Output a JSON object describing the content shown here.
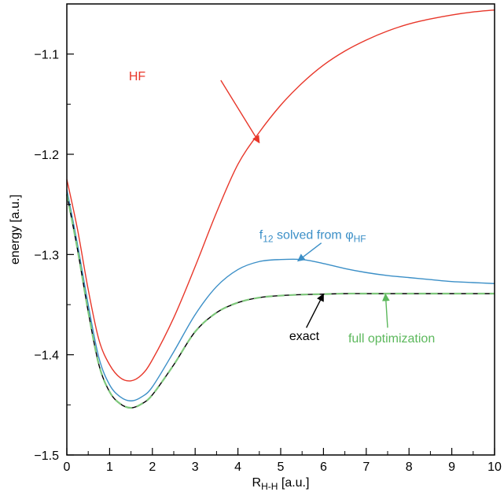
{
  "chart_data": {
    "type": "line",
    "title": "",
    "xlabel_main": "R",
    "xlabel_sub": "H-H",
    "xlabel_unit": " [a.u.]",
    "ylabel": "energy [a.u.]",
    "xlim": [
      0,
      10
    ],
    "ylim": [
      -1.5,
      -1.05
    ],
    "x_ticks": [
      0,
      1,
      2,
      3,
      4,
      5,
      6,
      7,
      8,
      9,
      10
    ],
    "x_tick_labels": [
      "0",
      "1",
      "2",
      "3",
      "4",
      "5",
      "6",
      "7",
      "8",
      "9",
      "10"
    ],
    "y_ticks": [
      -1.5,
      -1.4,
      -1.3,
      -1.2,
      -1.1
    ],
    "y_tick_labels": [
      "−1.5",
      "−1.4",
      "−1.3",
      "−1.2",
      "−1.1"
    ],
    "grid": false,
    "series": [
      {
        "key": "hf",
        "name": "HF",
        "color": "#e8372a",
        "style": "solid",
        "x": [
          0,
          0.25,
          0.5,
          0.75,
          1.0,
          1.25,
          1.5,
          1.75,
          2.0,
          2.5,
          3.0,
          3.5,
          4.0,
          4.5,
          5.0,
          5.5,
          6.0,
          6.5,
          7.0,
          7.5,
          8.0,
          8.5,
          9.0,
          9.5,
          10.0
        ],
        "y": [
          -1.225,
          -1.275,
          -1.335,
          -1.385,
          -1.41,
          -1.423,
          -1.426,
          -1.42,
          -1.405,
          -1.363,
          -1.312,
          -1.258,
          -1.21,
          -1.178,
          -1.151,
          -1.129,
          -1.111,
          -1.097,
          -1.086,
          -1.077,
          -1.07,
          -1.065,
          -1.061,
          -1.058,
          -1.056
        ]
      },
      {
        "key": "f12",
        "name": "f12 solved from φHF",
        "color": "#3b8fc7",
        "style": "solid",
        "x": [
          0,
          0.25,
          0.5,
          0.75,
          1.0,
          1.25,
          1.5,
          1.75,
          2.0,
          2.5,
          3.0,
          3.5,
          4.0,
          4.5,
          5.0,
          5.5,
          6.0,
          6.5,
          7.0,
          7.5,
          8.0,
          8.5,
          9.0,
          9.5,
          10.0
        ],
        "y": [
          -1.235,
          -1.29,
          -1.35,
          -1.403,
          -1.43,
          -1.442,
          -1.446,
          -1.442,
          -1.432,
          -1.397,
          -1.36,
          -1.332,
          -1.315,
          -1.307,
          -1.305,
          -1.305,
          -1.309,
          -1.314,
          -1.318,
          -1.321,
          -1.323,
          -1.325,
          -1.327,
          -1.328,
          -1.329
        ]
      },
      {
        "key": "exact",
        "name": "exact",
        "color": "#000000",
        "style": "solid",
        "x": [
          0,
          0.25,
          0.5,
          0.75,
          1.0,
          1.25,
          1.5,
          1.75,
          2.0,
          2.5,
          3.0,
          3.5,
          4.0,
          4.5,
          5.0,
          5.5,
          6.0,
          6.5,
          7.0,
          7.5,
          8.0,
          8.5,
          9.0,
          9.5,
          10.0
        ],
        "y": [
          -1.24,
          -1.295,
          -1.357,
          -1.41,
          -1.437,
          -1.449,
          -1.453,
          -1.449,
          -1.44,
          -1.41,
          -1.377,
          -1.358,
          -1.348,
          -1.343,
          -1.341,
          -1.34,
          -1.3395,
          -1.339,
          -1.339,
          -1.339,
          -1.339,
          -1.339,
          -1.339,
          -1.339,
          -1.339
        ]
      },
      {
        "key": "full",
        "name": "full optimization",
        "color": "#7ec77b",
        "style": "dashed",
        "x": [
          0,
          0.25,
          0.5,
          0.75,
          1.0,
          1.25,
          1.5,
          1.75,
          2.0,
          2.5,
          3.0,
          3.5,
          4.0,
          4.5,
          5.0,
          5.5,
          6.0,
          6.5,
          7.0,
          7.5,
          8.0,
          8.5,
          9.0,
          9.5,
          10.0
        ],
        "y": [
          -1.24,
          -1.295,
          -1.357,
          -1.41,
          -1.437,
          -1.449,
          -1.453,
          -1.449,
          -1.44,
          -1.41,
          -1.377,
          -1.358,
          -1.348,
          -1.343,
          -1.341,
          -1.34,
          -1.3395,
          -1.339,
          -1.339,
          -1.339,
          -1.339,
          -1.339,
          -1.339,
          -1.339,
          -1.339
        ]
      }
    ],
    "annotations": [
      {
        "key": "hf",
        "label": "HF",
        "label_main": "HF",
        "label_sub": "",
        "label_suffix": "",
        "label_sub2": "",
        "color": "#e8372a",
        "text_at": [
          1.45,
          -1.1262
        ],
        "arrow_from": [
          3.6,
          -1.1262
        ],
        "arrow_to": [
          4.5,
          -1.1885
        ]
      },
      {
        "key": "f12",
        "label": "f12 solved from φHF",
        "label_main": "f",
        "label_sub": "12",
        "label_suffix": " solved from φ",
        "label_sub2": "HF",
        "color": "#3b8fc7",
        "text_at": [
          4.5,
          -1.2845
        ],
        "arrow_from": [
          5.95,
          -1.2885
        ],
        "arrow_to": [
          5.4,
          -1.3065
        ]
      },
      {
        "key": "exact",
        "label": "exact",
        "label_main": "exact",
        "label_sub": "",
        "label_suffix": "",
        "label_sub2": "",
        "color": "#000000",
        "text_at": [
          5.2,
          -1.3855
        ],
        "arrow_from": [
          5.6,
          -1.373
        ],
        "arrow_to": [
          6.0,
          -1.3395
        ]
      },
      {
        "key": "full",
        "label": "full optimization",
        "label_main": "full optimization",
        "label_sub": "",
        "label_suffix": "",
        "label_sub2": "",
        "color": "#5cb85c",
        "text_at": [
          6.58,
          -1.3875
        ],
        "arrow_from": [
          7.5,
          -1.373
        ],
        "arrow_to": [
          7.45,
          -1.3395
        ]
      }
    ]
  }
}
